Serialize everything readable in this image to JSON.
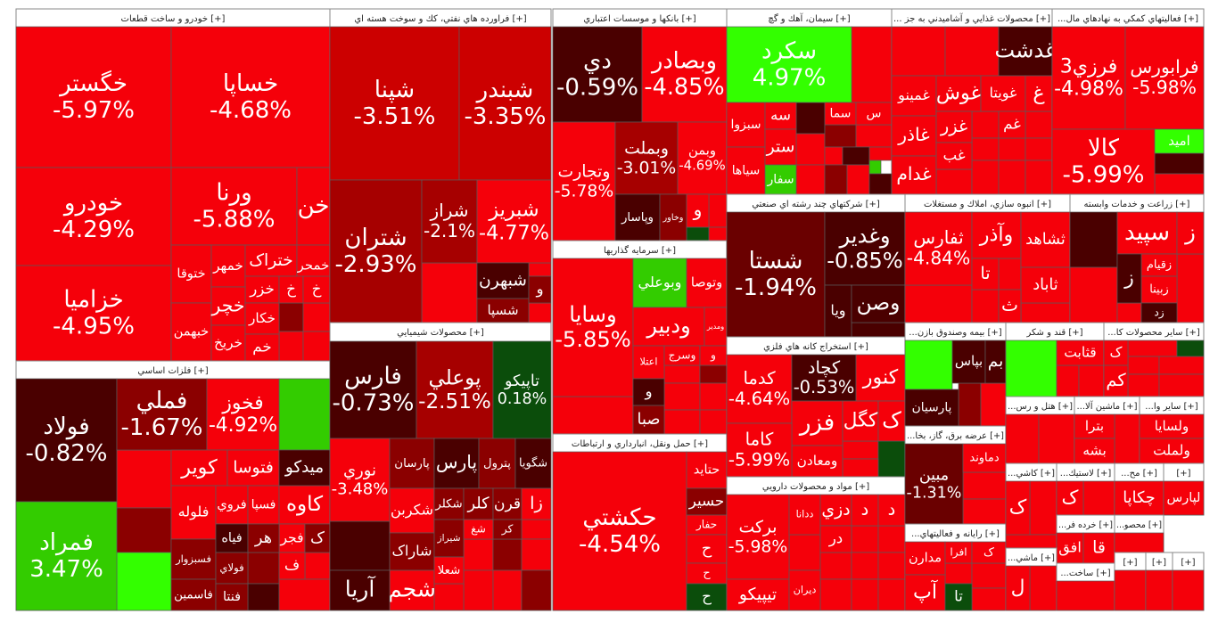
{
  "sectors": [
    {
      "title": "خودرو و ساخت قطعات [+]",
      "tiles": [
        {
          "name": "خگستر",
          "change": "-5.97%"
        },
        {
          "name": "خساپا",
          "change": "-4.68%"
        },
        {
          "name": "خودرو",
          "change": "-4.29%"
        },
        {
          "name": "خزامیا",
          "change": "-4.95%"
        },
        {
          "name": "ورنا",
          "change": "-5.88%"
        },
        {
          "name": "خن"
        },
        {
          "name": "ختوقا"
        },
        {
          "name": "خبهمن"
        },
        {
          "name": "خمهر"
        },
        {
          "name": "ختراک"
        },
        {
          "name": "خمحر"
        },
        {
          "name": "خزر"
        },
        {
          "name": "خ"
        },
        {
          "name": "خ"
        },
        {
          "name": "خچر"
        },
        {
          "name": "خریخ"
        },
        {
          "name": "خکار"
        },
        {
          "name": "خم"
        }
      ]
    },
    {
      "title": "فلزات اساسي [+]",
      "tiles": [
        {
          "name": "فولاد",
          "change": "-0.82%"
        },
        {
          "name": "فمراد",
          "change": "3.47%"
        },
        {
          "name": "فملي",
          "change": "-1.67%"
        },
        {
          "name": "فخوز",
          "change": "-4.92%"
        },
        {
          "name": "کویر"
        },
        {
          "name": "فتوسا"
        },
        {
          "name": "میدکو"
        },
        {
          "name": "فلوله"
        },
        {
          "name": "فروي"
        },
        {
          "name": "فسپا"
        },
        {
          "name": "کاوه"
        },
        {
          "name": "فسبزوار"
        },
        {
          "name": "فاسمین"
        },
        {
          "name": "فیاه"
        },
        {
          "name": "فولاي"
        },
        {
          "name": "فنتا"
        },
        {
          "name": "فجر"
        },
        {
          "name": "ک"
        },
        {
          "name": "هر"
        },
        {
          "name": "ف"
        }
      ]
    },
    {
      "title": "فراورده هاي نفتي، كك و سوخت هسته اي [+]",
      "tiles": [
        {
          "name": "شپنا",
          "change": "-3.51%"
        },
        {
          "name": "شبندر",
          "change": "-3.35%"
        },
        {
          "name": "شتران",
          "change": "-2.93%"
        },
        {
          "name": "شراز",
          "change": "-2.1%"
        },
        {
          "name": "شبریز",
          "change": "-4.77%"
        },
        {
          "name": "شبهرن"
        },
        {
          "name": "شسپا"
        },
        {
          "name": "و"
        }
      ]
    },
    {
      "title": "محصولات شيميايي [+]",
      "tiles": [
        {
          "name": "فارس",
          "change": "-0.73%"
        },
        {
          "name": "پوعلي",
          "change": "-2.51%"
        },
        {
          "name": "تاپیکو",
          "change": "0.18%"
        },
        {
          "name": "نوري",
          "change": "-3.48%"
        },
        {
          "name": "پارسان"
        },
        {
          "name": "پارس"
        },
        {
          "name": "پترول"
        },
        {
          "name": "شگویا"
        },
        {
          "name": "شکربن"
        },
        {
          "name": "شکلر"
        },
        {
          "name": "کلر"
        },
        {
          "name": "قرن"
        },
        {
          "name": "زا"
        },
        {
          "name": "شاراک"
        },
        {
          "name": "شیراز"
        },
        {
          "name": "شجم"
        },
        {
          "name": "آریا"
        },
        {
          "name": "شعلا"
        },
        {
          "name": "کر"
        },
        {
          "name": "شغ"
        }
      ]
    },
    {
      "title": "بانكها و موسسات اعتباري [+]",
      "tiles": [
        {
          "name": "دي",
          "change": "-0.59%"
        },
        {
          "name": "وبصادر",
          "change": "-4.85%"
        },
        {
          "name": "وتجارت",
          "change": "-5.78%"
        },
        {
          "name": "وبملت",
          "change": "-3.01%"
        },
        {
          "name": "وبمن",
          "change": "-4.69%"
        },
        {
          "name": "وپاسار"
        },
        {
          "name": "وخاور"
        },
        {
          "name": "و"
        }
      ]
    },
    {
      "title": "سرمايه گذاريها [+]",
      "tiles": [
        {
          "name": "وسایا",
          "change": "-5.85%"
        },
        {
          "name": "وبوعلي"
        },
        {
          "name": "وتوصا"
        },
        {
          "name": "ودبیر"
        },
        {
          "name": "ومدیر"
        },
        {
          "name": "اعتلا"
        },
        {
          "name": "وسرج"
        },
        {
          "name": "و"
        },
        {
          "name": "و"
        },
        {
          "name": "صبا"
        }
      ]
    },
    {
      "title": "حمل ونقل، انبارداري و ارتباطات [+]",
      "tiles": [
        {
          "name": "حکشتي",
          "change": "-4.54%"
        },
        {
          "name": "حتاید"
        },
        {
          "name": "حسیر"
        },
        {
          "name": "حفار"
        },
        {
          "name": "ح"
        },
        {
          "name": "ح"
        },
        {
          "name": "ح"
        }
      ]
    },
    {
      "title": "سيمان، آهك و گچ [+]",
      "tiles": [
        {
          "name": "سکرد",
          "change": "4.97%"
        },
        {
          "name": "سبزوا"
        },
        {
          "name": "سیاها"
        },
        {
          "name": "سه"
        },
        {
          "name": "ستر"
        },
        {
          "name": "سفار"
        },
        {
          "name": "سما"
        },
        {
          "name": "س"
        }
      ]
    },
    {
      "title": "... محصولات غذايي و آشاميدني به جز [+]",
      "tiles": [
        {
          "name": "غدشت"
        },
        {
          "name": "غمینو"
        },
        {
          "name": "غوش"
        },
        {
          "name": "غویتا"
        },
        {
          "name": "غ"
        },
        {
          "name": "غاذر"
        },
        {
          "name": "غزر"
        },
        {
          "name": "غم"
        },
        {
          "name": "غدام"
        },
        {
          "name": "غب"
        }
      ]
    },
    {
      "title": "...فعاليتهاي كمكي به نهادهاي مال [+]",
      "tiles": [
        {
          "name": "فرزي3",
          "change": "-4.98%"
        },
        {
          "name": "فرابورس",
          "change": "-5.98%"
        },
        {
          "name": "کالا",
          "change": "-5.99%"
        },
        {
          "name": "امید"
        }
      ]
    },
    {
      "title": "شركتهاي چند رشته اي صنعتي [+]",
      "tiles": [
        {
          "name": "شستا",
          "change": "-1.94%"
        },
        {
          "name": "وغدير",
          "change": "-0.85%"
        },
        {
          "name": "ویا"
        },
        {
          "name": "وصن"
        }
      ]
    },
    {
      "title": "استخراج كانه هاي فلزي [+]",
      "tiles": [
        {
          "name": "کدما",
          "change": "-4.64%"
        },
        {
          "name": "کچاد",
          "change": "-0.53%"
        },
        {
          "name": "کنور"
        },
        {
          "name": "فزر"
        },
        {
          "name": "کگل"
        },
        {
          "name": "ک"
        },
        {
          "name": "ومعادن"
        },
        {
          "name": "کاما",
          "change": "-5.99%"
        }
      ]
    },
    {
      "title": "مواد و محصولات دارويي [+]",
      "tiles": [
        {
          "name": "برکت",
          "change": "-5.98%"
        },
        {
          "name": "تیپیکو"
        },
        {
          "name": "ددانا"
        },
        {
          "name": "دزي"
        },
        {
          "name": "د"
        },
        {
          "name": "د"
        },
        {
          "name": "در"
        },
        {
          "name": "دیران"
        }
      ]
    },
    {
      "title": "انبوه سازي، املاك و مستغلات [+]",
      "tiles": [
        {
          "name": "ثفارس",
          "change": "-4.84%"
        },
        {
          "name": "وآذر"
        },
        {
          "name": "ثشاهد"
        },
        {
          "name": "تا"
        },
        {
          "name": "ثاباد"
        },
        {
          "name": "ث"
        }
      ]
    },
    {
      "title": "زراعت و خدمات وابسته [+]",
      "tiles": [
        {
          "name": "سپید"
        },
        {
          "name": "ز"
        },
        {
          "name": "زقيام"
        },
        {
          "name": "زبینا"
        },
        {
          "name": "زد"
        },
        {
          "name": "ز"
        }
      ]
    },
    {
      "title": "...بيمه وصندوق بازن [+]",
      "tiles": [
        {
          "name": "بپاس"
        },
        {
          "name": "بم"
        },
        {
          "name": "پارسیان"
        }
      ]
    },
    {
      "title": "قند و شكر [+]",
      "tiles": [
        {
          "name": "قثابت"
        }
      ]
    },
    {
      "title": "...ساير محصولات كا [+]",
      "tiles": [
        {
          "name": "ک"
        },
        {
          "name": "کم"
        }
      ]
    },
    {
      "title": "...عرضه برق، گاز، بخا [+]",
      "tiles": [
        {
          "name": "مبين",
          "change": "-1.31%"
        },
        {
          "name": "دماوند"
        }
      ]
    },
    {
      "title": "...رايانه و فعاليتهاي [+]",
      "tiles": [
        {
          "name": "مدارن"
        },
        {
          "name": "آپ"
        },
        {
          "name": "افرا"
        },
        {
          "name": "ک"
        },
        {
          "name": "تا"
        }
      ]
    },
    {
      "title": "...هتل و رس [+]",
      "tiles": []
    },
    {
      "title": "...ماشين آلا [+]",
      "tiles": [
        {
          "name": "بترا"
        },
        {
          "name": "بشه"
        }
      ]
    },
    {
      "title": "...ساير وا [+]",
      "tiles": [
        {
          "name": "ولسایا"
        },
        {
          "name": "ولملت"
        }
      ]
    },
    {
      "title": "...كاشي [+]",
      "tiles": [
        {
          "name": "ک"
        }
      ]
    },
    {
      "title": "...لاستيك [+]",
      "tiles": [
        {
          "name": "ک"
        }
      ]
    },
    {
      "title": "...مح [+]",
      "tiles": [
        {
          "name": "چکاپا"
        }
      ]
    },
    {
      "title": "[+]",
      "tiles": [
        {
          "name": "لپارس"
        }
      ]
    },
    {
      "title": "...خرده فر [+]",
      "tiles": [
        {
          "name": "افق"
        },
        {
          "name": "قا"
        }
      ]
    },
    {
      "title": "...محصو [+]",
      "tiles": []
    },
    {
      "title": "...ماشي [+]",
      "tiles": [
        {
          "name": "ل"
        }
      ]
    },
    {
      "title": "...ساخت [+]",
      "tiles": []
    },
    {
      "title": "[+]",
      "tiles": []
    },
    {
      "title": "[+]",
      "tiles": []
    },
    {
      "title": "[+]",
      "tiles": []
    }
  ]
}
